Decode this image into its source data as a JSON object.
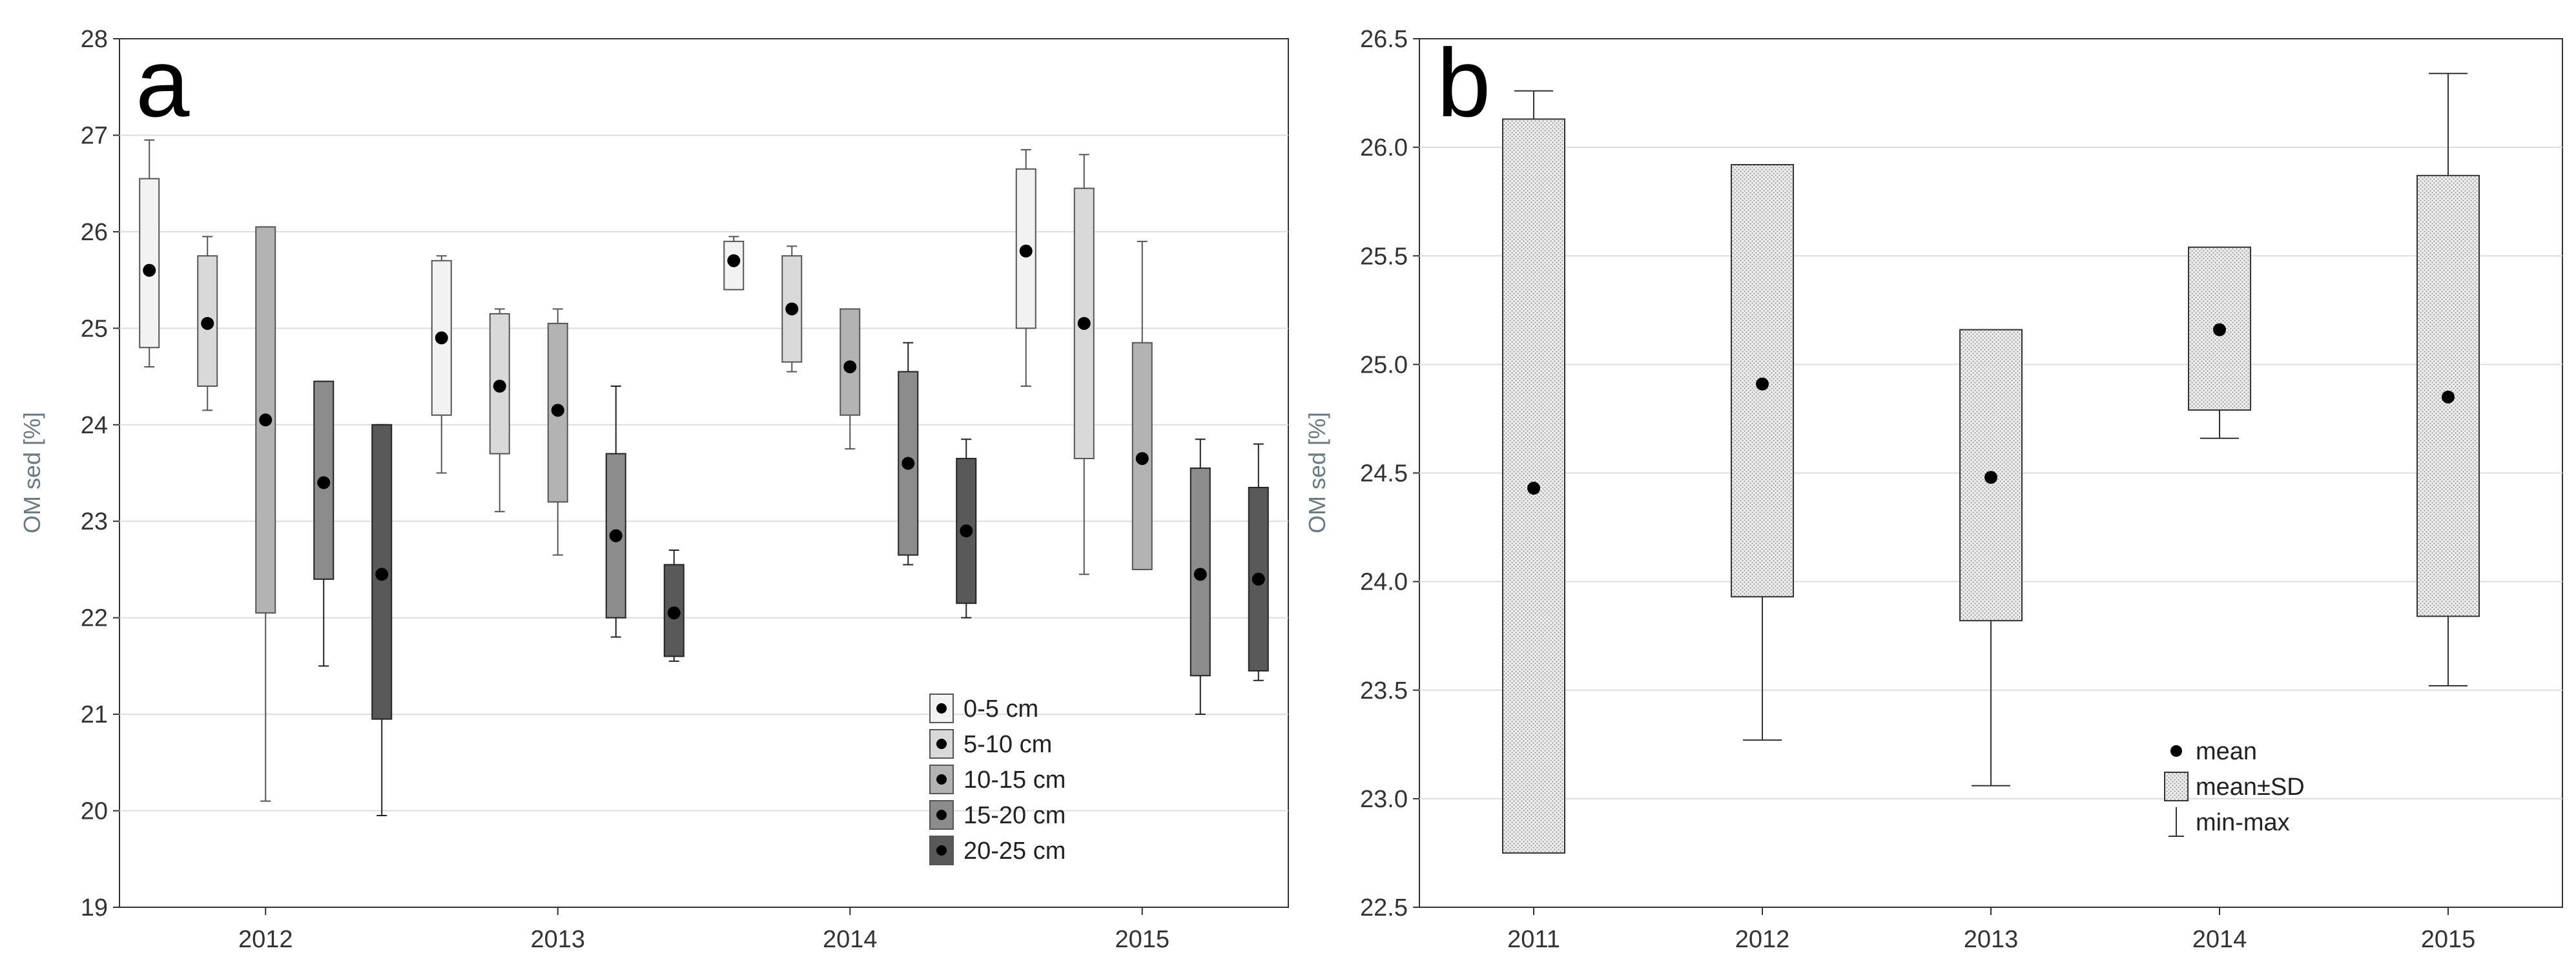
{
  "chart_data": [
    {
      "type": "box",
      "panel_label": "a",
      "ylabel": "OM sed [%]",
      "ylim": [
        19,
        28
      ],
      "yticks": [
        19,
        20,
        21,
        22,
        23,
        24,
        25,
        26,
        27,
        28
      ],
      "categories": [
        "2012",
        "2013",
        "2014",
        "2015"
      ],
      "legend_position": "bottom-right",
      "series": [
        {
          "name": "0-5 cm",
          "color": "#f2f2f2",
          "mean": [
            25.6,
            24.9,
            25.7,
            25.8
          ],
          "box_low": [
            24.8,
            24.1,
            25.4,
            25.0
          ],
          "box_high": [
            26.55,
            25.7,
            25.9,
            26.65
          ],
          "min": [
            24.6,
            23.5,
            25.4,
            24.4
          ],
          "max": [
            26.95,
            25.75,
            25.95,
            26.85
          ]
        },
        {
          "name": "5-10 cm",
          "color": "#d9d9d9",
          "mean": [
            25.05,
            24.4,
            25.2,
            25.05
          ],
          "box_low": [
            24.4,
            23.7,
            24.65,
            23.65
          ],
          "box_high": [
            25.75,
            25.15,
            25.75,
            26.45
          ],
          "min": [
            24.15,
            23.1,
            24.55,
            22.45
          ],
          "max": [
            25.95,
            25.2,
            25.85,
            26.8
          ]
        },
        {
          "name": "10-15 cm",
          "color": "#b3b3b3",
          "mean": [
            24.05,
            24.15,
            24.6,
            23.65
          ],
          "box_low": [
            22.05,
            23.2,
            24.1,
            22.5
          ],
          "box_high": [
            26.05,
            25.05,
            25.2,
            24.85
          ],
          "min": [
            20.1,
            22.65,
            23.75,
            22.5
          ],
          "max": [
            26.05,
            25.2,
            25.2,
            25.9
          ]
        },
        {
          "name": "15-20 cm",
          "color": "#8c8c8c",
          "mean": [
            23.4,
            22.85,
            23.6,
            22.45
          ],
          "box_low": [
            22.4,
            22.0,
            22.65,
            21.4
          ],
          "box_high": [
            24.45,
            23.7,
            24.55,
            23.55
          ],
          "min": [
            21.5,
            21.8,
            22.55,
            21.0
          ],
          "max": [
            24.45,
            24.4,
            24.85,
            23.85
          ]
        },
        {
          "name": "20-25 cm",
          "color": "#595959",
          "mean": [
            22.45,
            22.05,
            22.9,
            22.4
          ],
          "box_low": [
            20.95,
            21.6,
            22.15,
            21.45
          ],
          "box_high": [
            24.0,
            22.55,
            23.65,
            23.35
          ],
          "min": [
            19.95,
            21.55,
            22.0,
            21.35
          ],
          "max": [
            24.0,
            22.7,
            23.85,
            23.8
          ]
        }
      ]
    },
    {
      "type": "box",
      "panel_label": "b",
      "ylabel": "OM sed [%]",
      "ylim": [
        22.5,
        26.5
      ],
      "yticks": [
        22.5,
        23.0,
        23.5,
        24.0,
        24.5,
        25.0,
        25.5,
        26.0,
        26.5
      ],
      "ytick_labels": [
        "22.5",
        "23.0",
        "23.5",
        "24.0",
        "24.5",
        "25.0",
        "25.5",
        "26.0",
        "26.5"
      ],
      "categories": [
        "2011",
        "2012",
        "2013",
        "2014",
        "2015"
      ],
      "mean": [
        24.43,
        24.91,
        24.48,
        25.16,
        24.85
      ],
      "box_low": [
        22.75,
        23.93,
        23.82,
        24.79,
        23.84
      ],
      "box_high": [
        26.13,
        25.92,
        25.16,
        25.54,
        25.87
      ],
      "min": [
        22.75,
        23.27,
        23.06,
        24.66,
        23.52
      ],
      "max": [
        26.26,
        25.92,
        25.16,
        25.54,
        26.34
      ],
      "legend_position": "bottom-right",
      "legend": [
        "mean",
        "mean±SD",
        "min-max"
      ]
    }
  ]
}
